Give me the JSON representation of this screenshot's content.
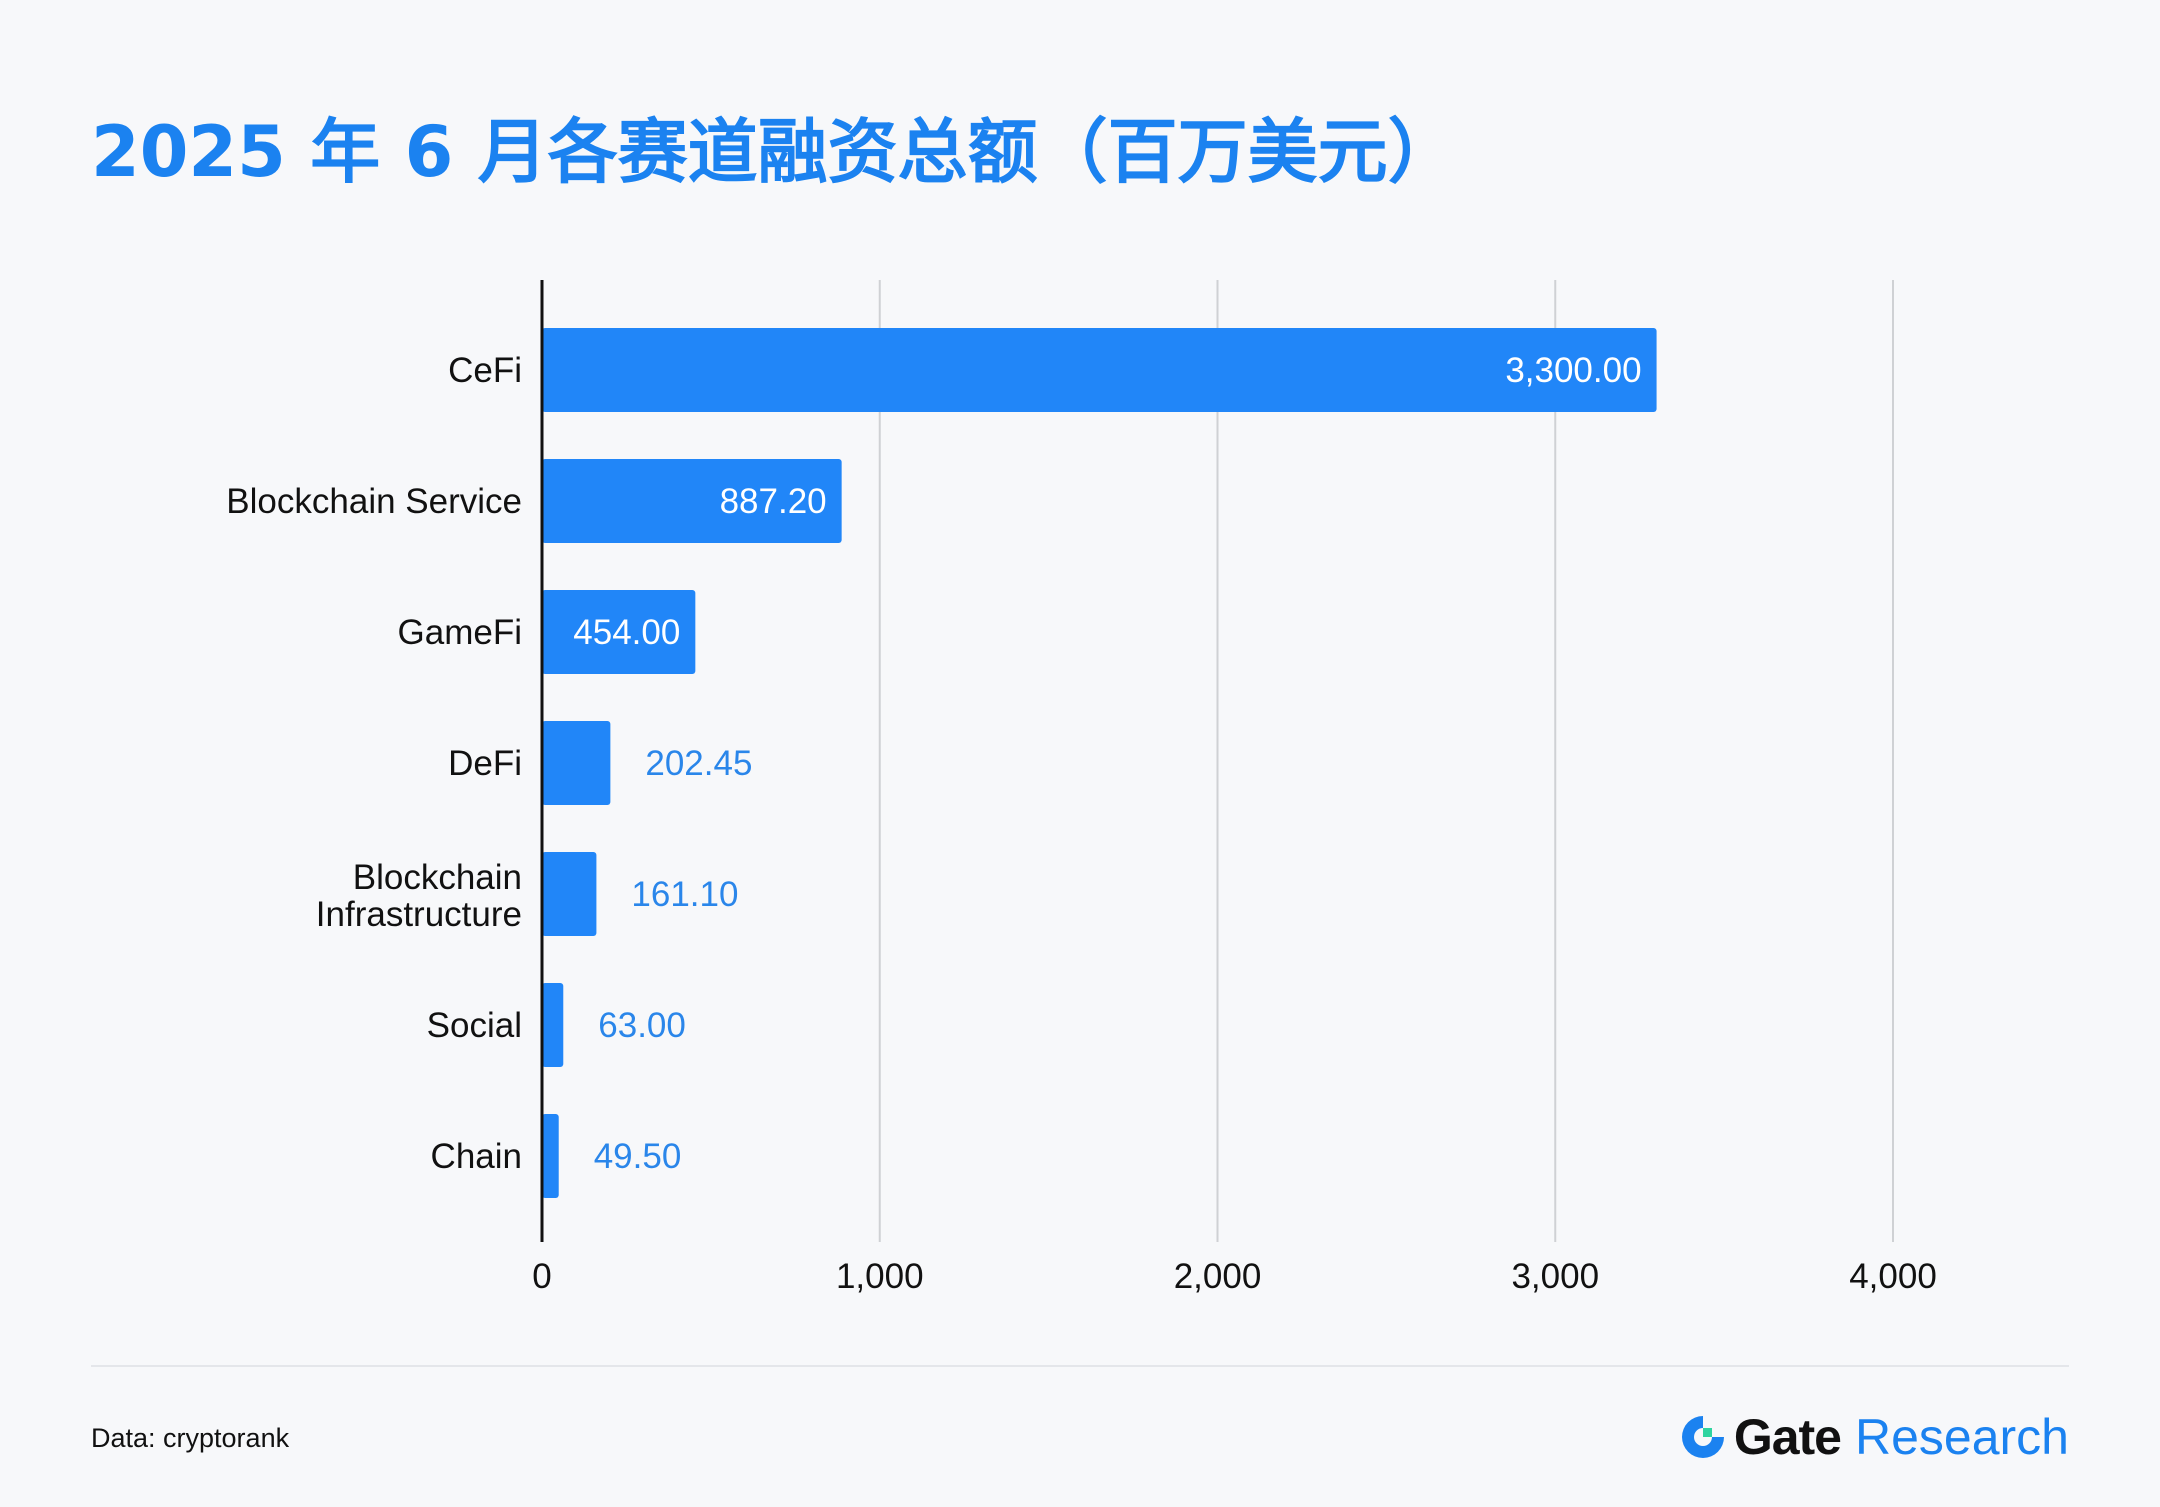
{
  "title": "2025 年 6 月各赛道融资总额（百万美元）",
  "source": "Data: cryptorank",
  "brand": {
    "name": "Gate",
    "sub": "Research",
    "icon": "gate-logo-icon"
  },
  "colors": {
    "bar": "#2186f8",
    "title": "#1b82f0",
    "label_inside": "#ffffff",
    "label_outside": "#2a86ea",
    "grid": "#cfd1d4",
    "axis": "#111111",
    "background": "#f7f8fa"
  },
  "chart_data": {
    "type": "bar",
    "orientation": "horizontal",
    "categories": [
      "CeFi",
      "Blockchain Service",
      "GameFi",
      "DeFi",
      "Blockchain Infrastructure",
      "Social",
      "Chain"
    ],
    "category_lines": [
      [
        "CeFi"
      ],
      [
        "Blockchain Service"
      ],
      [
        "GameFi"
      ],
      [
        "DeFi"
      ],
      [
        "Blockchain",
        "Infrastructure"
      ],
      [
        "Social"
      ],
      [
        "Chain"
      ]
    ],
    "values": [
      3300.0,
      887.2,
      454.0,
      202.45,
      161.1,
      63.0,
      49.5
    ],
    "value_labels": [
      "3,300.00",
      "887.20",
      "454.00",
      "202.45",
      "161.10",
      "63.00",
      "49.50"
    ],
    "xlim": [
      0,
      4000
    ],
    "xticks": [
      0,
      1000,
      2000,
      3000,
      4000
    ],
    "xtick_labels": [
      "0",
      "1,000",
      "2,000",
      "3,000",
      "4,000"
    ],
    "grid": true,
    "legend": false
  }
}
